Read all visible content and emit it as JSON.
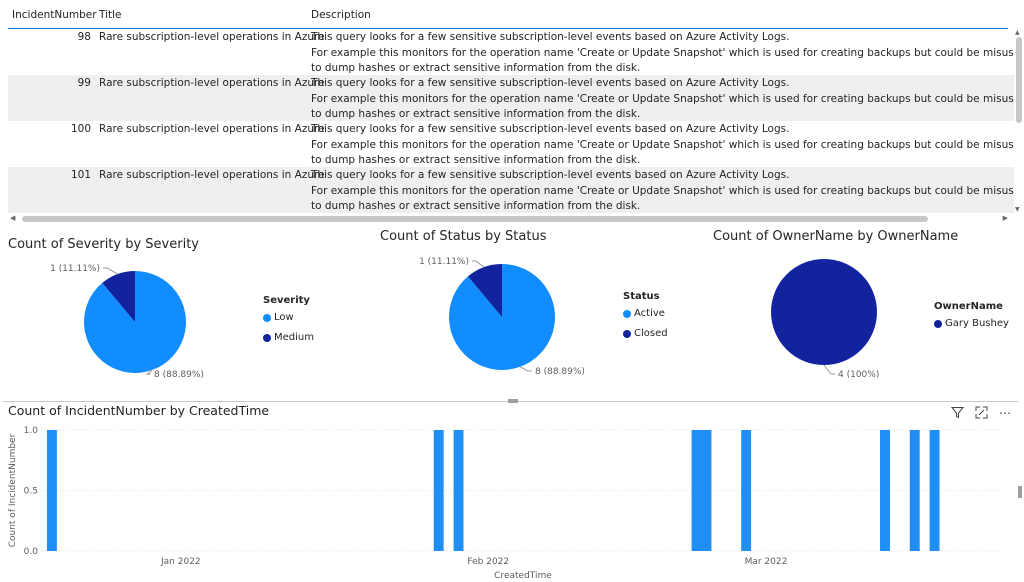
{
  "table": {
    "columns": [
      "IncidentNumber",
      "Title",
      "Description"
    ],
    "rows": [
      {
        "number": "98",
        "title": "Rare subscription-level operations in Azure",
        "desc1": "This query looks for a few sensitive subscription-level events based on Azure Activity Logs.",
        "desc2": "For example this monitors for the operation name 'Create or Update Snapshot' which is used for creating backups but could be misused by attackers",
        "desc3": "to dump hashes or extract sensitive information from the disk."
      },
      {
        "number": "99",
        "title": "Rare subscription-level operations in Azure",
        "desc1": "This query looks for a few sensitive subscription-level events based on Azure Activity Logs.",
        "desc2": "For example this monitors for the operation name 'Create or Update Snapshot' which is used for creating backups but could be misused by attackers",
        "desc3": "to dump hashes or extract sensitive information from the disk."
      },
      {
        "number": "100",
        "title": "Rare subscription-level operations in Azure",
        "desc1": "This query looks for a few sensitive subscription-level events based on Azure Activity Logs.",
        "desc2": "For example this monitors for the operation name 'Create or Update Snapshot' which is used for creating backups but could be misused by attackers",
        "desc3": "to dump hashes or extract sensitive information from the disk."
      },
      {
        "number": "101",
        "title": "Rare subscription-level operations in Azure",
        "desc1": "This query looks for a few sensitive subscription-level events based on Azure Activity Logs.",
        "desc2": "For example this monitors for the operation name 'Create or Update Snapshot' which is used for creating backups but could be misused by attackers",
        "desc3": "to dump hashes or extract sensitive information from the disk."
      }
    ]
  },
  "colors": {
    "light_blue": "#118dff",
    "dark_blue": "#12239e",
    "bar_blue": "#1f8ff5",
    "accent": "#2b7cd3"
  },
  "chart_data": [
    {
      "type": "pie",
      "title": "Count of Severity by Severity",
      "legend_title": "Severity",
      "legend_placement": "right",
      "slices": [
        {
          "name": "Low",
          "value": 8,
          "label": "8 (88.89%)",
          "color": "#118dff"
        },
        {
          "name": "Medium",
          "value": 1,
          "label": "1 (11.11%)",
          "color": "#12239e"
        }
      ]
    },
    {
      "type": "pie",
      "title": "Count of Status by Status",
      "legend_title": "Status",
      "legend_placement": "right",
      "slices": [
        {
          "name": "Active",
          "value": 8,
          "label": "8 (88.89%)",
          "color": "#118dff"
        },
        {
          "name": "Closed",
          "value": 1,
          "label": "1 (11.11%)",
          "color": "#12239e"
        }
      ]
    },
    {
      "type": "pie",
      "title": "Count of OwnerName by OwnerName",
      "legend_title": "OwnerName",
      "legend_placement": "right",
      "slices": [
        {
          "name": "Gary Bushey",
          "value": 4,
          "label": "4 (100%)",
          "color": "#12239e"
        }
      ]
    },
    {
      "type": "bar",
      "title": "Count of IncidentNumber by CreatedTime",
      "xlabel": "CreatedTime",
      "ylabel": "Count of IncidentNumber",
      "ylim": [
        0,
        1
      ],
      "yticks": [
        "0.0",
        "0.5",
        "1.0"
      ],
      "xlim": [
        "2021-12-18",
        "2022-03-25"
      ],
      "x_ticks": [
        {
          "label": "Jan 2022",
          "date": "2022-01-01"
        },
        {
          "label": "Feb 2022",
          "date": "2022-02-01"
        },
        {
          "label": "Mar 2022",
          "date": "2022-03-01"
        }
      ],
      "points": [
        {
          "date": "2021-12-19",
          "value": 1
        },
        {
          "date": "2022-01-27",
          "value": 1
        },
        {
          "date": "2022-01-29",
          "value": 1
        },
        {
          "date": "2022-02-22",
          "value": 1
        },
        {
          "date": "2022-02-23",
          "value": 1
        },
        {
          "date": "2022-02-27",
          "value": 1
        },
        {
          "date": "2022-03-13",
          "value": 1
        },
        {
          "date": "2022-03-16",
          "value": 1
        },
        {
          "date": "2022-03-18",
          "value": 1
        }
      ]
    }
  ]
}
